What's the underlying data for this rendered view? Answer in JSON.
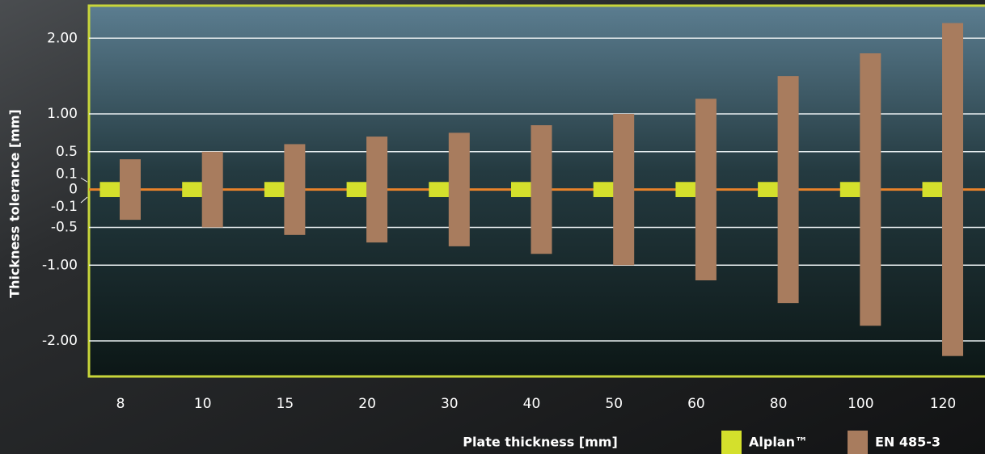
{
  "chart_data": {
    "type": "range_bar",
    "x_label": "Plate thickness [mm]",
    "y_label": "Thickness tolerance [mm]",
    "categories": [
      "8",
      "10",
      "15",
      "20",
      "30",
      "40",
      "50",
      "60",
      "80",
      "100",
      "120"
    ],
    "series": [
      {
        "name": "Alplan™",
        "color": "#d4e02c",
        "low": [
          -0.1,
          -0.1,
          -0.1,
          -0.1,
          -0.1,
          -0.1,
          -0.1,
          -0.1,
          -0.1,
          -0.1,
          -0.1
        ],
        "high": [
          0.1,
          0.1,
          0.1,
          0.1,
          0.1,
          0.1,
          0.1,
          0.1,
          0.1,
          0.1,
          0.1
        ]
      },
      {
        "name": "EN 485-3",
        "color": "#a87c5e",
        "low": [
          -0.4,
          -0.5,
          -0.6,
          -0.7,
          -0.75,
          -0.85,
          -1.0,
          -1.2,
          -1.5,
          -1.8,
          -2.2
        ],
        "high": [
          0.4,
          0.5,
          0.6,
          0.7,
          0.75,
          0.85,
          1.0,
          1.2,
          1.5,
          1.8,
          2.2
        ]
      }
    ],
    "ylim": [
      -2.47,
      2.43
    ],
    "yticks": [
      {
        "value": 2,
        "label": "2.00"
      },
      {
        "value": 1,
        "label": "1.00"
      },
      0.5,
      0.1,
      0,
      -0.1,
      -0.5,
      {
        "value": -1,
        "label": "-1.00"
      },
      {
        "value": -2,
        "label": "-2.00"
      }
    ],
    "grid": true,
    "grid_color": "#e8eef0",
    "zero_line_color": "#e8822a",
    "frame_color": "#c8d63a"
  }
}
